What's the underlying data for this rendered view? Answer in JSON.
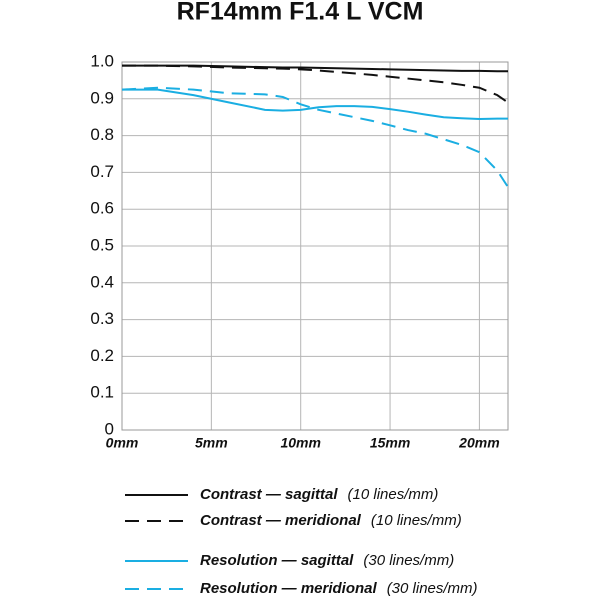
{
  "chart_data": {
    "type": "line",
    "title": "RF14mm F1.4 L VCM",
    "x": [
      0,
      2,
      4,
      6,
      8,
      9,
      10,
      11,
      12,
      13,
      14,
      15,
      16,
      17,
      18,
      19,
      20,
      21,
      21.6
    ],
    "xlim": [
      0,
      21.6
    ],
    "xticks": [
      {
        "value": 0,
        "label": "0mm"
      },
      {
        "value": 5,
        "label": "5mm"
      },
      {
        "value": 10,
        "label": "10mm"
      },
      {
        "value": 15,
        "label": "15mm"
      },
      {
        "value": 20,
        "label": "20mm"
      }
    ],
    "ylim": [
      0,
      1
    ],
    "yticks": [
      0,
      0.1,
      0.2,
      0.3,
      0.4,
      0.5,
      0.6,
      0.7,
      0.8,
      0.9,
      {
        "value": 1,
        "label": "1.0"
      }
    ],
    "grid": true,
    "series": [
      {
        "name": "Contrast — sagittal",
        "frequency": "(10 lines/mm)",
        "color": "#111111",
        "dashed": false,
        "values": [
          0.99,
          0.99,
          0.99,
          0.988,
          0.986,
          0.985,
          0.985,
          0.984,
          0.983,
          0.982,
          0.981,
          0.98,
          0.979,
          0.978,
          0.977,
          0.976,
          0.976,
          0.975,
          0.975
        ]
      },
      {
        "name": "Contrast — meridional",
        "frequency": "(10 lines/mm)",
        "color": "#111111",
        "dashed": true,
        "values": [
          0.99,
          0.99,
          0.988,
          0.985,
          0.983,
          0.982,
          0.98,
          0.977,
          0.973,
          0.969,
          0.965,
          0.96,
          0.955,
          0.95,
          0.945,
          0.938,
          0.93,
          0.91,
          0.89
        ]
      },
      {
        "name": "Resolution — sagittal",
        "frequency": "(30 lines/mm)",
        "color": "#1aaee2",
        "dashed": false,
        "values": [
          0.925,
          0.925,
          0.91,
          0.89,
          0.87,
          0.868,
          0.87,
          0.877,
          0.88,
          0.88,
          0.878,
          0.872,
          0.865,
          0.857,
          0.85,
          0.847,
          0.845,
          0.846,
          0.846
        ]
      },
      {
        "name": "Resolution — meridional",
        "frequency": "(30 lines/mm)",
        "color": "#1aaee2",
        "dashed": true,
        "values": [
          0.925,
          0.93,
          0.925,
          0.915,
          0.912,
          0.905,
          0.885,
          0.87,
          0.86,
          0.85,
          0.84,
          0.828,
          0.815,
          0.805,
          0.79,
          0.775,
          0.755,
          0.705,
          0.66
        ]
      }
    ]
  }
}
